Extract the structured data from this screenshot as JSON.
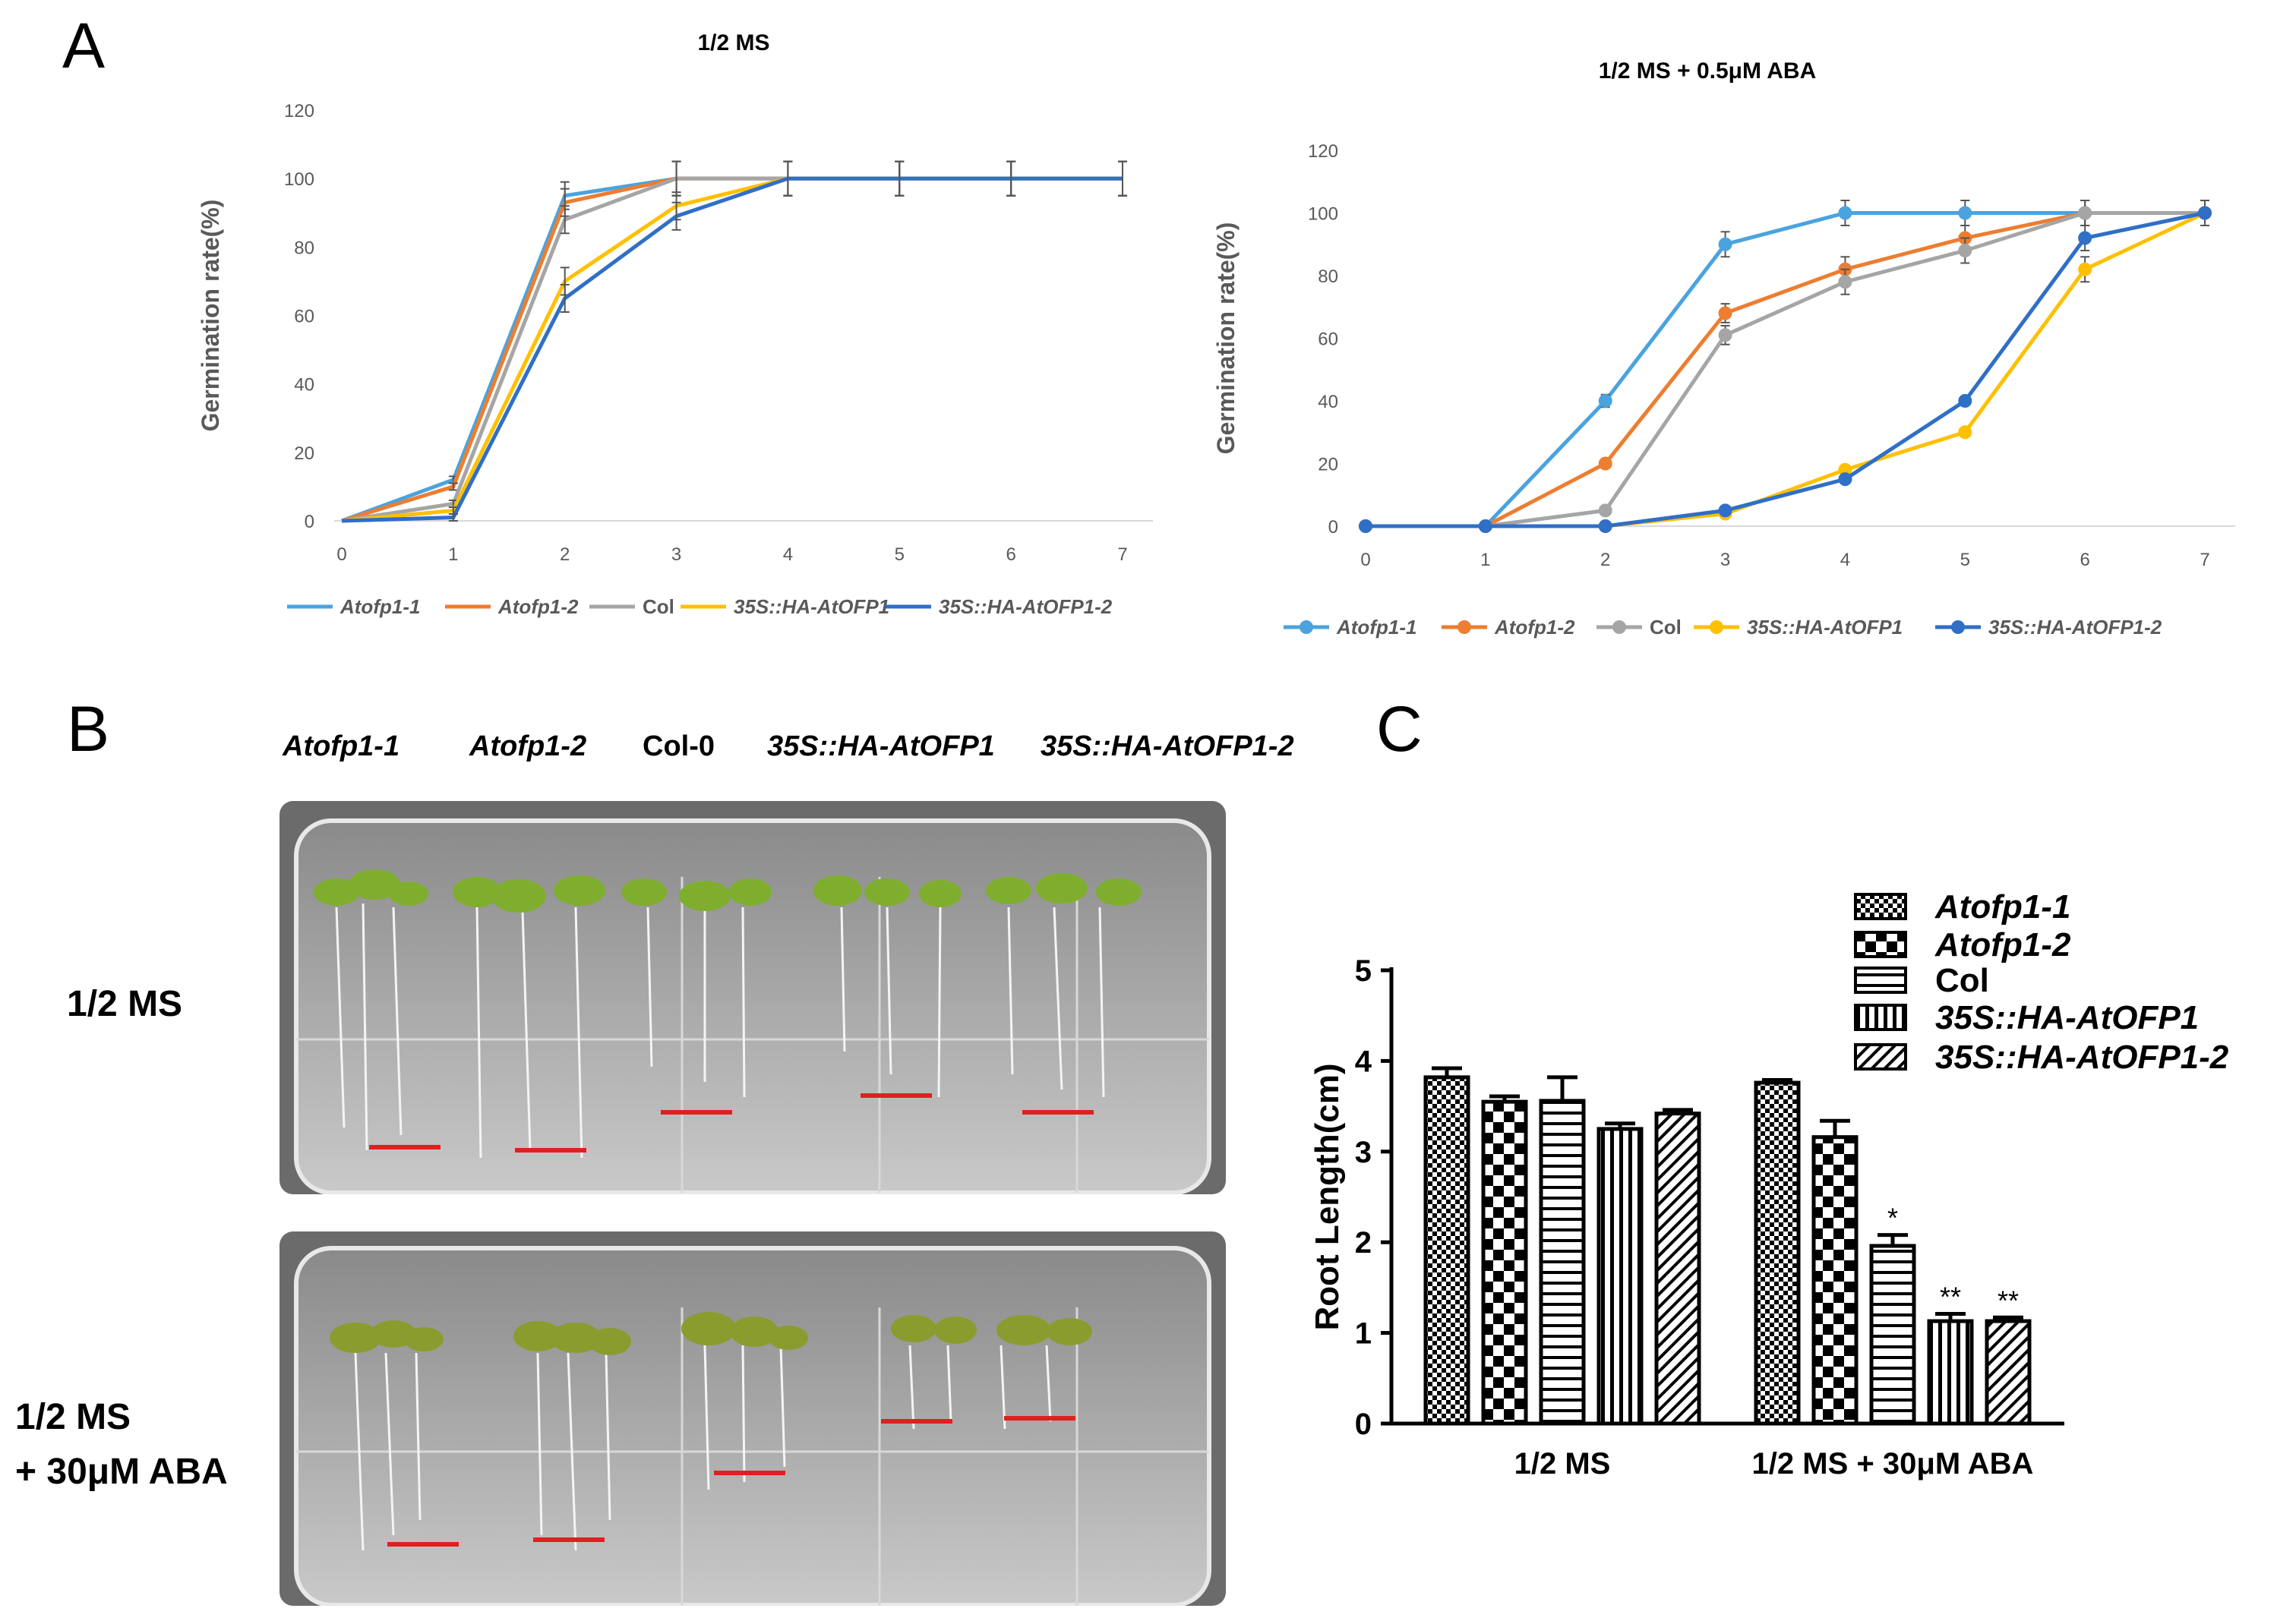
{
  "panel_labels": {
    "a": "A",
    "b": "B",
    "c": "C"
  },
  "colors": {
    "Atofp1-1": "#4aa3df",
    "Atofp1-2": "#ed7d31",
    "Col": "#a5a5a5",
    "35S::HA-AtOFP1": "#ffc000",
    "35S::HA-AtOFP1-2": "#2f6fc6",
    "scale_bar": "#e02020"
  },
  "panel_b": {
    "genotypes": [
      "Atofp1-1",
      "Atofp1-2",
      "Col-0",
      "35S::HA-AtOFP1",
      "35S::HA-AtOFP1-2"
    ],
    "row1_label": "1/2 MS",
    "row2_label_line1": "1/2 MS",
    "row2_label_line2": "+ 30μM ABA",
    "description": "Photographs of seedlings on agar plates"
  },
  "chart_data": [
    {
      "type": "line",
      "title": "1/2 MS",
      "xlabel": "",
      "ylabel": "Germination rate(%)",
      "x": [
        0,
        1,
        2,
        3,
        4,
        5,
        6,
        7
      ],
      "ylim": [
        0,
        120
      ],
      "yticks": [
        0,
        20,
        40,
        60,
        80,
        100,
        120
      ],
      "markers": false,
      "series": [
        {
          "name": "Atofp1-1",
          "values": [
            0,
            12,
            95,
            100,
            100,
            100,
            100,
            100
          ],
          "err": [
            0,
            1,
            4,
            5,
            5,
            5,
            5,
            5
          ]
        },
        {
          "name": "Atofp1-2",
          "values": [
            0,
            10,
            93,
            100,
            100,
            100,
            100,
            100
          ],
          "err": [
            0,
            1,
            4,
            5,
            5,
            5,
            5,
            5
          ]
        },
        {
          "name": "Col",
          "values": [
            0,
            5,
            88,
            100,
            100,
            100,
            100,
            100
          ],
          "err": [
            0,
            1,
            4,
            5,
            5,
            5,
            5,
            5
          ]
        },
        {
          "name": "35S::HA-AtOFP1",
          "values": [
            0,
            3,
            70,
            92,
            100,
            100,
            100,
            100
          ],
          "err": [
            0,
            1,
            4,
            4,
            5,
            5,
            5,
            5
          ]
        },
        {
          "name": "35S::HA-AtOFP1-2",
          "values": [
            0,
            1,
            65,
            89,
            100,
            100,
            100,
            100
          ],
          "err": [
            0,
            1,
            4,
            4,
            5,
            5,
            5,
            5
          ]
        }
      ]
    },
    {
      "type": "line",
      "title": "1/2 MS + 0.5μM ABA",
      "xlabel": "",
      "ylabel": "Germination rate(%)",
      "x": [
        0,
        1,
        2,
        3,
        4,
        5,
        6,
        7
      ],
      "ylim": [
        0,
        120
      ],
      "yticks": [
        0,
        20,
        40,
        60,
        80,
        100,
        120
      ],
      "markers": true,
      "series": [
        {
          "name": "Atofp1-1",
          "values": [
            0,
            0,
            40,
            90,
            100,
            100,
            100,
            100
          ],
          "err": [
            0,
            0,
            2,
            4,
            4,
            4,
            4,
            4
          ]
        },
        {
          "name": "Atofp1-2",
          "values": [
            0,
            0,
            20,
            68,
            82,
            92,
            100,
            100
          ],
          "err": [
            0,
            0,
            1,
            3,
            4,
            4,
            4,
            4
          ]
        },
        {
          "name": "Col",
          "values": [
            0,
            0,
            5,
            61,
            78,
            88,
            100,
            100
          ],
          "err": [
            0,
            0,
            1,
            3,
            4,
            4,
            4,
            4
          ]
        },
        {
          "name": "35S::HA-AtOFP1",
          "values": [
            0,
            0,
            0,
            4,
            18,
            30,
            82,
            100
          ],
          "err": [
            0,
            0,
            0,
            1,
            1,
            1,
            4,
            4
          ]
        },
        {
          "name": "35S::HA-AtOFP1-2",
          "values": [
            0,
            0,
            0,
            5,
            15,
            40,
            92,
            100
          ],
          "err": [
            0,
            0,
            0,
            1,
            1,
            1,
            4,
            4
          ]
        }
      ]
    },
    {
      "type": "bar",
      "title": "",
      "xlabel": "",
      "ylabel": "Root Length(cm)",
      "categories": [
        "1/2 MS",
        "1/2 MS + 30μM ABA"
      ],
      "ylim": [
        0,
        5
      ],
      "yticks": [
        0,
        1,
        2,
        3,
        4,
        5
      ],
      "legend_position": "top-right",
      "series": [
        {
          "name": "Atofp1-1",
          "values": [
            3.82,
            3.76
          ],
          "err": [
            0.1,
            0.03
          ],
          "sig": [
            "",
            ""
          ]
        },
        {
          "name": "Atofp1-2",
          "values": [
            3.55,
            3.16
          ],
          "err": [
            0.06,
            0.18
          ],
          "sig": [
            "",
            ""
          ]
        },
        {
          "name": "Col",
          "values": [
            3.56,
            1.96
          ],
          "err": [
            0.26,
            0.12
          ],
          "sig": [
            "",
            "*"
          ]
        },
        {
          "name": "35S::HA-AtOFP1",
          "values": [
            3.25,
            1.13
          ],
          "err": [
            0.06,
            0.08
          ],
          "sig": [
            "",
            "**"
          ]
        },
        {
          "name": "35S::HA-AtOFP1-2",
          "values": [
            3.42,
            1.13
          ],
          "err": [
            0.04,
            0.04
          ],
          "sig": [
            "",
            "**"
          ]
        }
      ]
    }
  ]
}
